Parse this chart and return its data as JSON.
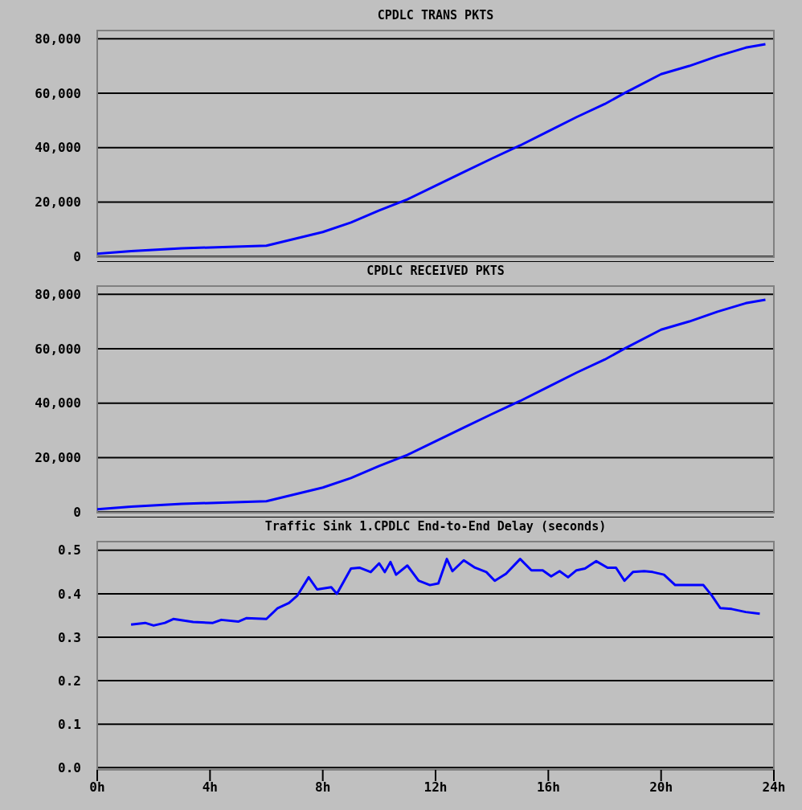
{
  "chart_data": [
    {
      "type": "line",
      "title": "CPDLC TRANS PKTS",
      "x": [
        0,
        1.2,
        3,
        6,
        7,
        8,
        9,
        10,
        11,
        12,
        13,
        14,
        15,
        16,
        17,
        18,
        18.7,
        20,
        21,
        22,
        23,
        23.7
      ],
      "series": [
        {
          "color": "#0000ff",
          "values": [
            1000,
            2000,
            3000,
            4000,
            6500,
            9000,
            12500,
            16900,
            21000,
            26000,
            31000,
            36000,
            40800,
            46000,
            51200,
            56000,
            60000,
            67000,
            70000,
            73600,
            76700,
            78000
          ]
        }
      ],
      "xlim": [
        0,
        24
      ],
      "ylim": [
        -2000,
        83000
      ],
      "yticks": [
        {
          "value": 0,
          "label": "0"
        },
        {
          "value": 20000,
          "label": "20,000"
        },
        {
          "value": 40000,
          "label": "40,000"
        },
        {
          "value": 60000,
          "label": "60,000"
        },
        {
          "value": 80000,
          "label": "80,000"
        }
      ],
      "grid": "y",
      "tick_labels": "y",
      "legend": false,
      "marker": "none",
      "line_style": "solid"
    },
    {
      "type": "line",
      "title": "CPDLC RECEIVED PKTS",
      "x": [
        0,
        1.2,
        3,
        6,
        7,
        8,
        9,
        10,
        11,
        12,
        13,
        14,
        15,
        16,
        17,
        18,
        18.7,
        20,
        21,
        22,
        23,
        23.7
      ],
      "series": [
        {
          "color": "#0000ff",
          "values": [
            1000,
            2000,
            3000,
            4000,
            6500,
            9000,
            12500,
            16900,
            21000,
            26000,
            31000,
            36000,
            40800,
            46000,
            51200,
            56000,
            60000,
            67000,
            70000,
            73600,
            76700,
            78000
          ]
        }
      ],
      "xlim": [
        0,
        24
      ],
      "ylim": [
        -2000,
        83000
      ],
      "yticks": [
        {
          "value": 0,
          "label": "0"
        },
        {
          "value": 20000,
          "label": "20,000"
        },
        {
          "value": 40000,
          "label": "40,000"
        },
        {
          "value": 60000,
          "label": "60,000"
        },
        {
          "value": 80000,
          "label": "80,000"
        }
      ],
      "grid": "y",
      "tick_labels": "y",
      "legend": false,
      "marker": "none",
      "line_style": "solid"
    },
    {
      "type": "line",
      "title": "Traffic Sink 1.CPDLC End-to-End Delay (seconds)",
      "x": [
        1.2,
        1.7,
        2,
        2.4,
        2.7,
        3.4,
        4.1,
        4.4,
        5,
        5.3,
        6,
        6.4,
        6.8,
        7.1,
        7.5,
        7.8,
        8.3,
        8.5,
        9,
        9.3,
        9.7,
        10,
        10.2,
        10.4,
        10.6,
        11,
        11.4,
        11.8,
        12.1,
        12.4,
        12.6,
        13,
        13.4,
        13.8,
        14.1,
        14.5,
        15,
        15.4,
        15.8,
        16.1,
        16.4,
        16.7,
        17,
        17.3,
        17.7,
        18.1,
        18.4,
        18.7,
        19,
        19.4,
        19.7,
        20.1,
        20.5,
        21.5,
        21.8,
        22.1,
        22.5,
        23,
        23.5
      ],
      "series": [
        {
          "color": "#0000ff",
          "values": [
            0.329,
            0.333,
            0.327,
            0.333,
            0.342,
            0.335,
            0.333,
            0.34,
            0.336,
            0.344,
            0.342,
            0.367,
            0.379,
            0.396,
            0.438,
            0.41,
            0.415,
            0.4,
            0.458,
            0.46,
            0.45,
            0.47,
            0.45,
            0.473,
            0.444,
            0.465,
            0.43,
            0.42,
            0.424,
            0.48,
            0.452,
            0.477,
            0.46,
            0.45,
            0.43,
            0.446,
            0.48,
            0.454,
            0.454,
            0.44,
            0.452,
            0.438,
            0.454,
            0.458,
            0.475,
            0.46,
            0.46,
            0.43,
            0.45,
            0.452,
            0.45,
            0.444,
            0.42,
            0.42,
            0.396,
            0.367,
            0.365,
            0.358,
            0.354
          ]
        }
      ],
      "xlim": [
        0,
        24
      ],
      "ylim": [
        -0.005,
        0.52
      ],
      "xticks": [
        {
          "value": 0,
          "label": "0h"
        },
        {
          "value": 4,
          "label": "4h"
        },
        {
          "value": 8,
          "label": "8h"
        },
        {
          "value": 12,
          "label": "12h"
        },
        {
          "value": 16,
          "label": "16h"
        },
        {
          "value": 20,
          "label": "20h"
        },
        {
          "value": 24,
          "label": "24h"
        }
      ],
      "yticks": [
        {
          "value": 0,
          "label": "0.0"
        },
        {
          "value": 0.1,
          "label": "0.1"
        },
        {
          "value": 0.2,
          "label": "0.2"
        },
        {
          "value": 0.3,
          "label": "0.3"
        },
        {
          "value": 0.4,
          "label": "0.4"
        },
        {
          "value": 0.5,
          "label": "0.5"
        }
      ],
      "grid": "y",
      "legend": false,
      "marker": "none",
      "line_style": "solid"
    }
  ]
}
